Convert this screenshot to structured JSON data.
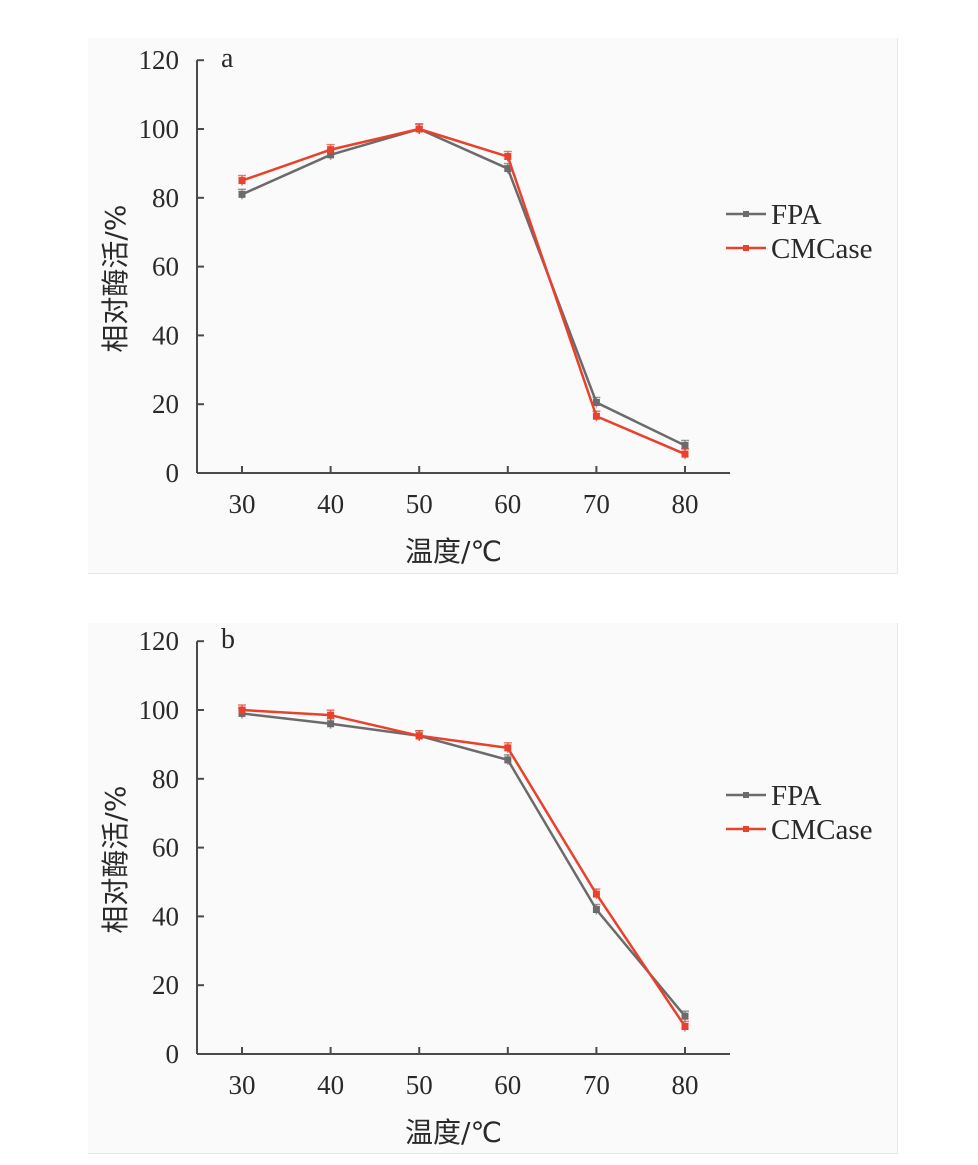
{
  "chart_data": [
    {
      "type": "line",
      "panel_label": "a",
      "xlabel": "温度/℃",
      "ylabel": "相对酶活/%",
      "x": [
        30,
        40,
        50,
        60,
        70,
        80
      ],
      "xticks": [
        "30",
        "40",
        "50",
        "60",
        "70",
        "80"
      ],
      "yticks": [
        "0",
        "20",
        "40",
        "60",
        "80",
        "100",
        "120"
      ],
      "ylim": [
        0,
        120
      ],
      "grid": false,
      "legend_position": "right",
      "series": [
        {
          "name": "FPA",
          "color": "#6b6b6b",
          "values": [
            81,
            92.5,
            100,
            88.5,
            20.5,
            8
          ]
        },
        {
          "name": "CMCase",
          "color": "#e8412c",
          "values": [
            85,
            94,
            100,
            92,
            16.5,
            5.5
          ]
        }
      ]
    },
    {
      "type": "line",
      "panel_label": "b",
      "xlabel": "温度/℃",
      "ylabel": "相对酶活/%",
      "x": [
        30,
        40,
        50,
        60,
        70,
        80
      ],
      "xticks": [
        "30",
        "40",
        "50",
        "60",
        "70",
        "80"
      ],
      "yticks": [
        "0",
        "20",
        "40",
        "60",
        "80",
        "100",
        "120"
      ],
      "ylim": [
        0,
        120
      ],
      "grid": false,
      "legend_position": "right",
      "series": [
        {
          "name": "FPA",
          "color": "#6b6b6b",
          "values": [
            99,
            96,
            92.5,
            85.5,
            42,
            11
          ]
        },
        {
          "name": "CMCase",
          "color": "#e8412c",
          "values": [
            100,
            98.5,
            92.5,
            89,
            46.5,
            8
          ]
        }
      ]
    }
  ]
}
